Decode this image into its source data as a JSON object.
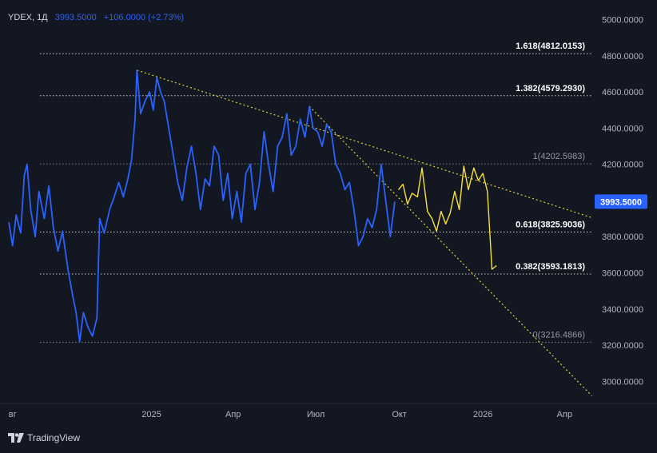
{
  "legend": {
    "symbol": "YDEX, 1Д",
    "value": "3993.5000",
    "change": "+106.0000 (+2.73%)"
  },
  "brand": {
    "name": "TradingView"
  },
  "colors": {
    "background": "#131722",
    "price_line": "#2962ff",
    "projection": "#f7e13c",
    "fib_dot": "#ffffff",
    "trend_dot": "#e0d33a",
    "price_label_bg": "#2962ff",
    "axis_text": "#b2b5be"
  },
  "chart_data": {
    "type": "line",
    "y_axis": {
      "range": [
        2900,
        5020
      ],
      "ticks": [
        5000,
        4800,
        4600,
        4400,
        4200,
        4000,
        3800,
        3600,
        3400,
        3200,
        3000
      ],
      "tick_labels": [
        "5000.0000",
        "4800.0000",
        "4600.0000",
        "4400.0000",
        "4200.0000",
        "4000.0000",
        "3800.0000",
        "3600.0000",
        "3400.0000",
        "3200.0000",
        "3000.0000"
      ],
      "position": "right"
    },
    "x_axis": {
      "range": [
        "2024-07-27",
        "2026-05-05"
      ],
      "ticks": [
        {
          "date": "2024-08-01",
          "label": "вг"
        },
        {
          "date": "2025-01-01",
          "label": "2025"
        },
        {
          "date": "2025-04-01",
          "label": "Апр"
        },
        {
          "date": "2025-07-01",
          "label": "Июл"
        },
        {
          "date": "2025-10-01",
          "label": "Окт"
        },
        {
          "date": "2026-01-01",
          "label": "2026"
        },
        {
          "date": "2026-04-01",
          "label": "Апр"
        }
      ]
    },
    "grid": false,
    "last_price": {
      "value": 3993.5,
      "label": "3993.5000"
    },
    "series": [
      {
        "points": [
          [
            "2024-07-28",
            3880
          ],
          [
            "2024-08-01",
            3750
          ],
          [
            "2024-08-05",
            3920
          ],
          [
            "2024-08-10",
            3820
          ],
          [
            "2024-08-14",
            4140
          ],
          [
            "2024-08-17",
            4200
          ],
          [
            "2024-08-21",
            3950
          ],
          [
            "2024-08-26",
            3800
          ],
          [
            "2024-08-30",
            4050
          ],
          [
            "2024-09-05",
            3900
          ],
          [
            "2024-09-10",
            4080
          ],
          [
            "2024-09-15",
            3850
          ],
          [
            "2024-09-20",
            3720
          ],
          [
            "2024-09-25",
            3830
          ],
          [
            "2024-10-01",
            3620
          ],
          [
            "2024-10-06",
            3480
          ],
          [
            "2024-10-10",
            3380
          ],
          [
            "2024-10-14",
            3220
          ],
          [
            "2024-10-18",
            3380
          ],
          [
            "2024-10-23",
            3300
          ],
          [
            "2024-10-28",
            3250
          ],
          [
            "2024-11-02",
            3350
          ],
          [
            "2024-11-05",
            3900
          ],
          [
            "2024-11-10",
            3820
          ],
          [
            "2024-11-16",
            3950
          ],
          [
            "2024-11-21",
            4020
          ],
          [
            "2024-11-26",
            4100
          ],
          [
            "2024-12-01",
            4020
          ],
          [
            "2024-12-06",
            4120
          ],
          [
            "2024-12-10",
            4220
          ],
          [
            "2024-12-14",
            4450
          ],
          [
            "2024-12-16",
            4720
          ],
          [
            "2024-12-20",
            4480
          ],
          [
            "2024-12-25",
            4550
          ],
          [
            "2024-12-30",
            4600
          ],
          [
            "2025-01-03",
            4500
          ],
          [
            "2025-01-07",
            4680
          ],
          [
            "2025-01-11",
            4600
          ],
          [
            "2025-01-15",
            4550
          ],
          [
            "2025-01-20",
            4400
          ],
          [
            "2025-01-25",
            4250
          ],
          [
            "2025-01-30",
            4100
          ],
          [
            "2025-02-04",
            4000
          ],
          [
            "2025-02-09",
            4180
          ],
          [
            "2025-02-14",
            4300
          ],
          [
            "2025-02-19",
            4150
          ],
          [
            "2025-02-24",
            3950
          ],
          [
            "2025-03-01",
            4120
          ],
          [
            "2025-03-06",
            4080
          ],
          [
            "2025-03-11",
            4300
          ],
          [
            "2025-03-16",
            4250
          ],
          [
            "2025-03-21",
            4000
          ],
          [
            "2025-03-26",
            4150
          ],
          [
            "2025-03-31",
            3900
          ],
          [
            "2025-04-05",
            4050
          ],
          [
            "2025-04-10",
            3880
          ],
          [
            "2025-04-15",
            4150
          ],
          [
            "2025-04-20",
            4200
          ],
          [
            "2025-04-25",
            3950
          ],
          [
            "2025-04-30",
            4100
          ],
          [
            "2025-05-05",
            4380
          ],
          [
            "2025-05-10",
            4200
          ],
          [
            "2025-05-15",
            4050
          ],
          [
            "2025-05-20",
            4300
          ],
          [
            "2025-05-25",
            4350
          ],
          [
            "2025-05-30",
            4480
          ],
          [
            "2025-06-04",
            4250
          ],
          [
            "2025-06-09",
            4300
          ],
          [
            "2025-06-14",
            4450
          ],
          [
            "2025-06-19",
            4350
          ],
          [
            "2025-06-24",
            4520
          ],
          [
            "2025-06-28",
            4400
          ],
          [
            "2025-07-03",
            4380
          ],
          [
            "2025-07-08",
            4300
          ],
          [
            "2025-07-13",
            4420
          ],
          [
            "2025-07-18",
            4380
          ],
          [
            "2025-07-23",
            4200
          ],
          [
            "2025-07-28",
            4150
          ],
          [
            "2025-08-02",
            4060
          ],
          [
            "2025-08-07",
            4100
          ],
          [
            "2025-08-12",
            3950
          ],
          [
            "2025-08-17",
            3750
          ],
          [
            "2025-08-22",
            3800
          ],
          [
            "2025-08-27",
            3900
          ],
          [
            "2025-09-01",
            3850
          ],
          [
            "2025-09-06",
            3950
          ],
          [
            "2025-09-11",
            4200
          ],
          [
            "2025-09-16",
            4000
          ],
          [
            "2025-09-21",
            3800
          ],
          [
            "2025-09-26",
            3993.5
          ]
        ]
      },
      {
        "points": [
          [
            "2025-09-30",
            4060
          ],
          [
            "2025-10-05",
            4090
          ],
          [
            "2025-10-10",
            3980
          ],
          [
            "2025-10-15",
            4040
          ],
          [
            "2025-10-21",
            4020
          ],
          [
            "2025-10-26",
            4180
          ],
          [
            "2025-11-01",
            3940
          ],
          [
            "2025-11-06",
            3900
          ],
          [
            "2025-11-11",
            3830
          ],
          [
            "2025-11-16",
            3940
          ],
          [
            "2025-11-21",
            3870
          ],
          [
            "2025-11-26",
            3930
          ],
          [
            "2025-12-01",
            4050
          ],
          [
            "2025-12-06",
            3950
          ],
          [
            "2025-12-11",
            4190
          ],
          [
            "2025-12-16",
            4060
          ],
          [
            "2025-12-22",
            4180
          ],
          [
            "2025-12-27",
            4110
          ],
          [
            "2026-01-01",
            4150
          ],
          [
            "2026-01-06",
            4050
          ],
          [
            "2026-01-11",
            3620
          ],
          [
            "2026-01-16",
            3640
          ]
        ]
      }
    ],
    "fibonacci": [
      {
        "ratio": "1.618",
        "value": 4812.0153,
        "label": "1.618(4812.0153)",
        "bold": true
      },
      {
        "ratio": "1.382",
        "value": 4579.293,
        "label": "1.382(4579.2930)",
        "bold": true
      },
      {
        "ratio": "1",
        "value": 4202.5983,
        "label": "1(4202.5983)",
        "bold": false
      },
      {
        "ratio": "0.618",
        "value": 3825.9036,
        "label": "0.618(3825.9036)",
        "bold": true
      },
      {
        "ratio": "0.382",
        "value": 3593.1813,
        "label": "0.382(3593.1813)",
        "bold": true
      },
      {
        "ratio": "0",
        "value": 3216.4866,
        "label": "0(3216.4866)",
        "bold": false
      }
    ],
    "trendlines": [
      {
        "from": [
          "2024-12-16",
          4720
        ],
        "to": [
          "2026-05-01",
          3905
        ]
      },
      {
        "from": [
          "2025-06-24",
          4520
        ],
        "to": [
          "2026-05-01",
          2920
        ]
      }
    ]
  }
}
